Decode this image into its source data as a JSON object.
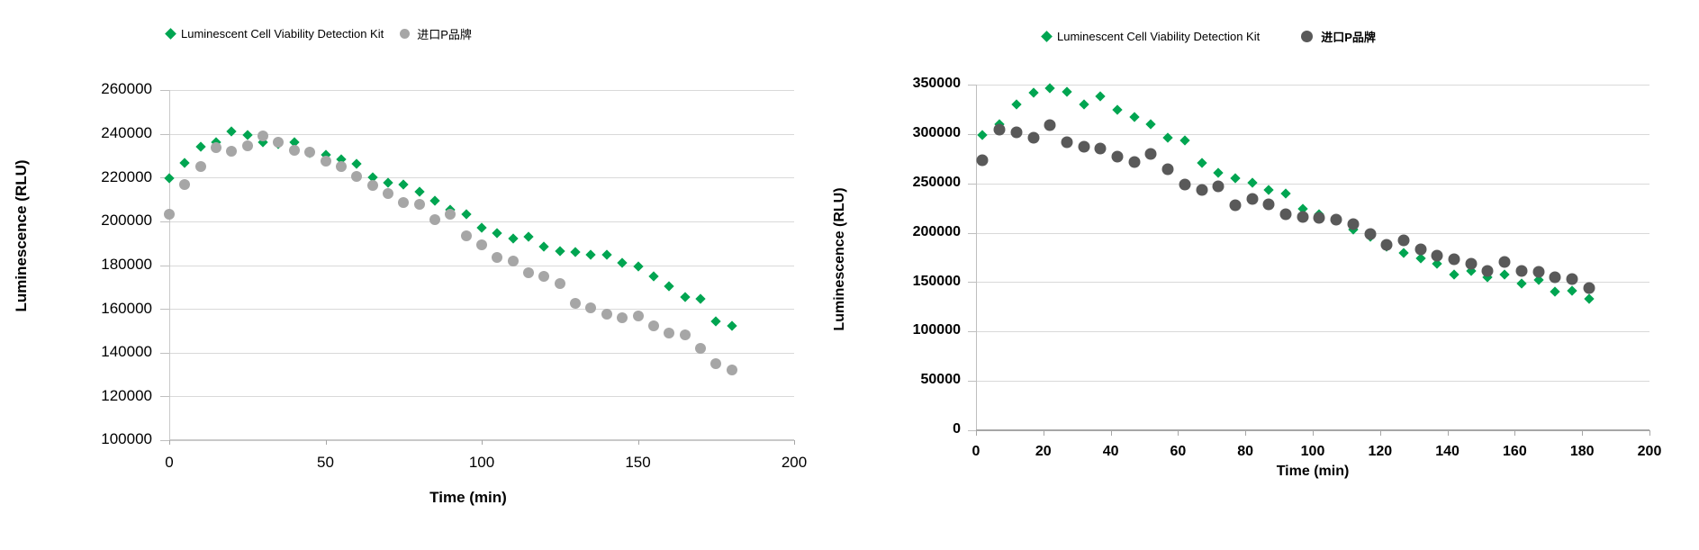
{
  "page": {
    "background": "#ffffff",
    "text_color": "#000000",
    "gridline_color": "#d9d9d9"
  },
  "chart_data": [
    {
      "type": "scatter",
      "title": "",
      "xlabel": "Time (min)",
      "ylabel": "Luminescence (RLU)",
      "xlim": [
        0,
        200
      ],
      "ylim": [
        100000,
        260000
      ],
      "x_ticks": [
        0,
        50,
        100,
        150,
        200
      ],
      "y_ticks": [
        260000,
        240000,
        220000,
        200000,
        180000,
        160000,
        140000,
        120000,
        100000
      ],
      "grid": "horizontal",
      "legend_position": "top",
      "x": [
        0,
        5,
        10,
        15,
        20,
        25,
        30,
        35,
        40,
        45,
        50,
        55,
        60,
        65,
        70,
        75,
        80,
        85,
        90,
        95,
        100,
        105,
        110,
        115,
        120,
        125,
        130,
        135,
        140,
        145,
        150,
        155,
        160,
        165,
        170,
        175,
        180
      ],
      "series": [
        {
          "name": "Luminescent Cell Viability Detection Kit",
          "marker": "diamond",
          "color": "#00A551",
          "legend_bold": false,
          "values": [
            219600,
            226700,
            234200,
            236100,
            241000,
            239500,
            236100,
            235400,
            236100,
            231300,
            230400,
            228400,
            226300,
            220100,
            217500,
            217000,
            213700,
            209600,
            205500,
            203400,
            197200,
            194700,
            192300,
            193100,
            188500,
            186500,
            185800,
            184800,
            184800,
            181100,
            179300,
            174900,
            170400,
            165200,
            164700,
            154200,
            152100
          ]
        },
        {
          "name": "进口P品牌",
          "marker": "circle",
          "color": "#A6A6A6",
          "legend_bold": false,
          "values": [
            203400,
            216700,
            225200,
            233600,
            232100,
            234600,
            239100,
            236000,
            232500,
            231600,
            227700,
            225000,
            220500,
            216200,
            212600,
            208500,
            207900,
            200900,
            203400,
            193500,
            189200,
            183400,
            182000,
            176600,
            174900,
            171500,
            162400,
            160300,
            157600,
            156000,
            156600,
            152200,
            149100,
            148000,
            141800,
            134900,
            132200
          ]
        }
      ]
    },
    {
      "type": "scatter",
      "title": "",
      "xlabel": "Time  (min)",
      "ylabel": "Luminescence  (RLU)",
      "xlim": [
        0,
        200
      ],
      "ylim": [
        0,
        350000
      ],
      "x_ticks": [
        0,
        20,
        40,
        60,
        80,
        100,
        120,
        140,
        160,
        180,
        200
      ],
      "y_ticks": [
        350000,
        300000,
        250000,
        200000,
        150000,
        100000,
        50000,
        0
      ],
      "grid": "horizontal",
      "legend_position": "top",
      "x": [
        2,
        7,
        12,
        17,
        22,
        27,
        32,
        37,
        42,
        47,
        52,
        57,
        62,
        67,
        72,
        77,
        82,
        87,
        92,
        97,
        102,
        107,
        112,
        117,
        122,
        127,
        132,
        137,
        142,
        147,
        152,
        157,
        162,
        167,
        172,
        177,
        182
      ],
      "series": [
        {
          "name": "Luminescent Cell Viability Detection Kit",
          "marker": "diamond",
          "color": "#00A551",
          "legend_bold": false,
          "values": [
            299000,
            309600,
            330000,
            341500,
            346100,
            342400,
            330000,
            337900,
            324700,
            317200,
            309600,
            295900,
            293400,
            271000,
            260300,
            254800,
            250800,
            243200,
            239600,
            224000,
            219200,
            212200,
            203100,
            196100,
            185800,
            180000,
            174500,
            168500,
            157300,
            161200,
            155200,
            157300,
            148200,
            151800,
            140000,
            141200,
            133000
          ]
        },
        {
          "name": "进口P品牌",
          "marker": "circle",
          "color": "#595959",
          "legend_bold": true,
          "values": [
            273500,
            304400,
            301900,
            295900,
            308900,
            291300,
            286800,
            285200,
            277000,
            271500,
            280000,
            264000,
            248700,
            243500,
            246600,
            227500,
            234400,
            228900,
            218300,
            216200,
            215300,
            213200,
            208600,
            198600,
            188000,
            192700,
            183000,
            176400,
            173400,
            168500,
            161200,
            170300,
            161200,
            160300,
            155200,
            152700,
            144200
          ]
        }
      ]
    }
  ]
}
